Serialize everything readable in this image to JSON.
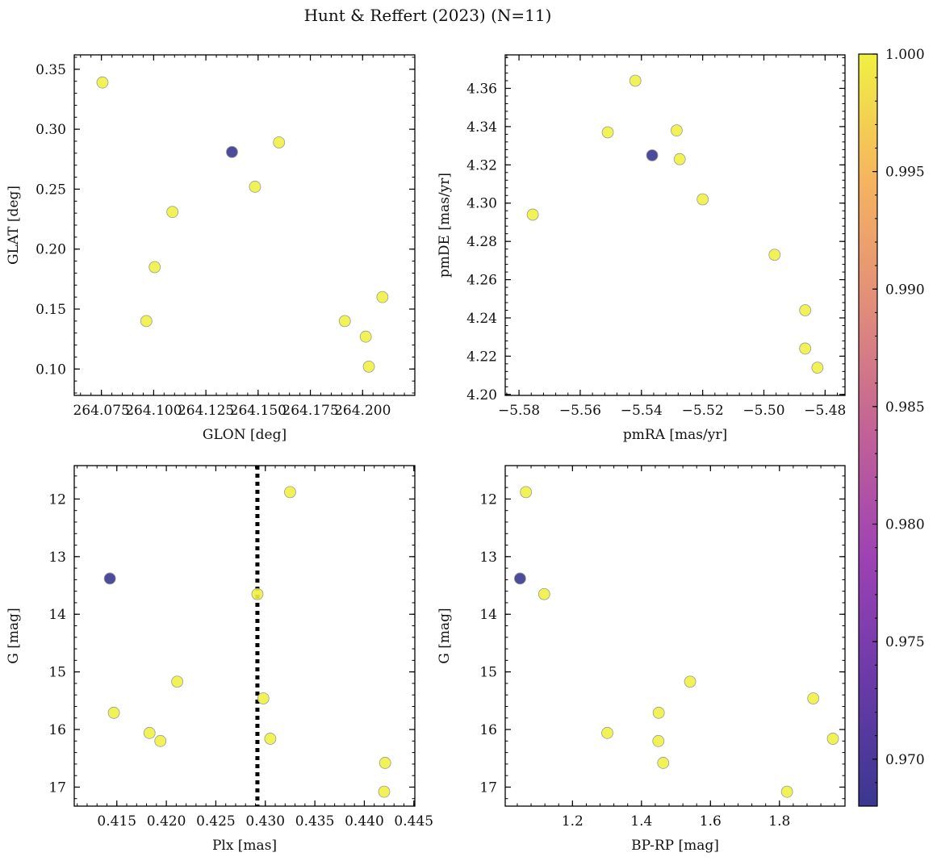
{
  "figure": {
    "title": "Hunt & Reffert (2023) (N=11)"
  },
  "colors": {
    "low": "#3a3890",
    "high": "#f0f142",
    "edge": "#9a9a9a",
    "refline": "#000000"
  },
  "chart_data": [
    {
      "type": "scatter",
      "id": "panel-glon-glat",
      "xlabel": "GLON [deg]",
      "ylabel": "GLAT [deg]",
      "xlim": [
        264.062,
        264.225
      ],
      "ylim": [
        0.078,
        0.362
      ],
      "xticks": [
        264.075,
        264.1,
        264.125,
        264.15,
        264.175,
        264.2
      ],
      "xtick_labels": [
        "264.075",
        "264.100",
        "264.125",
        "264.150",
        "264.175",
        "264.200"
      ],
      "yticks": [
        0.1,
        0.15,
        0.2,
        0.25,
        0.3,
        0.35
      ],
      "ytick_labels": [
        "0.10",
        "0.15",
        "0.20",
        "0.25",
        "0.30",
        "0.35"
      ],
      "invert_y": false,
      "points": [
        {
          "x": 264.0755,
          "y": 0.339,
          "c": 1.0
        },
        {
          "x": 264.1375,
          "y": 0.281,
          "c": 0.968
        },
        {
          "x": 264.16,
          "y": 0.289,
          "c": 1.0
        },
        {
          "x": 264.1485,
          "y": 0.252,
          "c": 1.0
        },
        {
          "x": 264.109,
          "y": 0.231,
          "c": 1.0
        },
        {
          "x": 264.1005,
          "y": 0.185,
          "c": 1.0
        },
        {
          "x": 264.0965,
          "y": 0.14,
          "c": 1.0
        },
        {
          "x": 264.1915,
          "y": 0.14,
          "c": 1.0
        },
        {
          "x": 264.2015,
          "y": 0.127,
          "c": 1.0
        },
        {
          "x": 264.2095,
          "y": 0.16,
          "c": 1.0
        },
        {
          "x": 264.203,
          "y": 0.102,
          "c": 1.0
        }
      ]
    },
    {
      "type": "scatter",
      "id": "panel-pm",
      "xlabel": "pmRA [mas/yr]",
      "ylabel": "pmDE [mas/yr]",
      "xlim": [
        -5.5845,
        -5.4735
      ],
      "ylim": [
        4.1995,
        4.3775
      ],
      "xticks": [
        -5.58,
        -5.56,
        -5.54,
        -5.52,
        -5.5,
        -5.48
      ],
      "xtick_labels": [
        "−5.58",
        "−5.56",
        "−5.54",
        "−5.52",
        "−5.50",
        "−5.48"
      ],
      "yticks": [
        4.2,
        4.22,
        4.24,
        4.26,
        4.28,
        4.3,
        4.32,
        4.34,
        4.36
      ],
      "ytick_labels": [
        "4.20",
        "4.22",
        "4.24",
        "4.26",
        "4.28",
        "4.30",
        "4.32",
        "4.34",
        "4.36"
      ],
      "invert_y": false,
      "points": [
        {
          "x": -5.5755,
          "y": 4.294,
          "c": 1.0
        },
        {
          "x": -5.551,
          "y": 4.337,
          "c": 1.0
        },
        {
          "x": -5.542,
          "y": 4.364,
          "c": 1.0
        },
        {
          "x": -5.5365,
          "y": 4.325,
          "c": 0.968
        },
        {
          "x": -5.5285,
          "y": 4.338,
          "c": 1.0
        },
        {
          "x": -5.5275,
          "y": 4.323,
          "c": 1.0
        },
        {
          "x": -5.52,
          "y": 4.302,
          "c": 1.0
        },
        {
          "x": -5.4965,
          "y": 4.273,
          "c": 1.0
        },
        {
          "x": -5.4865,
          "y": 4.244,
          "c": 1.0
        },
        {
          "x": -5.4865,
          "y": 4.224,
          "c": 1.0
        },
        {
          "x": -5.4825,
          "y": 4.214,
          "c": 1.0
        }
      ]
    },
    {
      "type": "scatter",
      "id": "panel-plx-g",
      "xlabel": "Plx [mas]",
      "ylabel": "G [mag]",
      "xlim": [
        0.4107,
        0.4451
      ],
      "ylim": [
        17.33,
        11.42
      ],
      "xticks": [
        0.415,
        0.42,
        0.425,
        0.43,
        0.435,
        0.44,
        0.445
      ],
      "xtick_labels": [
        "0.415",
        "0.420",
        "0.425",
        "0.430",
        "0.435",
        "0.440",
        "0.445"
      ],
      "yticks": [
        12,
        13,
        14,
        15,
        16,
        17
      ],
      "ytick_labels": [
        "12",
        "13",
        "14",
        "15",
        "16",
        "17"
      ],
      "invert_y": true,
      "vline": 0.4292,
      "points": [
        {
          "x": 0.4325,
          "y": 11.88,
          "c": 1.0
        },
        {
          "x": 0.4143,
          "y": 13.38,
          "c": 0.968
        },
        {
          "x": 0.4292,
          "y": 13.65,
          "c": 1.0
        },
        {
          "x": 0.4211,
          "y": 15.17,
          "c": 1.0
        },
        {
          "x": 0.4147,
          "y": 15.71,
          "c": 1.0
        },
        {
          "x": 0.4298,
          "y": 15.46,
          "c": 1.0
        },
        {
          "x": 0.4183,
          "y": 16.06,
          "c": 1.0
        },
        {
          "x": 0.4194,
          "y": 16.2,
          "c": 1.0
        },
        {
          "x": 0.4305,
          "y": 16.16,
          "c": 1.0
        },
        {
          "x": 0.4421,
          "y": 16.58,
          "c": 1.0
        },
        {
          "x": 0.442,
          "y": 17.08,
          "c": 1.0
        }
      ]
    },
    {
      "type": "scatter",
      "id": "panel-cmd",
      "xlabel": "BP-RP [mag]",
      "ylabel": "G [mag]",
      "xlim": [
        1.005,
        1.99
      ],
      "ylim": [
        17.33,
        11.42
      ],
      "xticks": [
        1.2,
        1.4,
        1.6,
        1.8
      ],
      "xtick_labels": [
        "1.2",
        "1.4",
        "1.6",
        "1.8"
      ],
      "yticks": [
        12,
        13,
        14,
        15,
        16,
        17
      ],
      "ytick_labels": [
        "12",
        "13",
        "14",
        "15",
        "16",
        "17"
      ],
      "invert_y": true,
      "points": [
        {
          "x": 1.065,
          "y": 11.88,
          "c": 1.0
        },
        {
          "x": 1.048,
          "y": 13.38,
          "c": 0.968
        },
        {
          "x": 1.118,
          "y": 13.65,
          "c": 1.0
        },
        {
          "x": 1.541,
          "y": 15.17,
          "c": 1.0
        },
        {
          "x": 1.45,
          "y": 15.71,
          "c": 1.0
        },
        {
          "x": 1.301,
          "y": 16.06,
          "c": 1.0
        },
        {
          "x": 1.449,
          "y": 16.2,
          "c": 1.0
        },
        {
          "x": 1.463,
          "y": 16.58,
          "c": 1.0
        },
        {
          "x": 1.898,
          "y": 15.46,
          "c": 1.0
        },
        {
          "x": 1.955,
          "y": 16.16,
          "c": 1.0
        },
        {
          "x": 1.822,
          "y": 17.08,
          "c": 1.0
        }
      ]
    }
  ],
  "colorbar": {
    "min": 0.968,
    "max": 1.0,
    "ticks": [
      0.97,
      0.975,
      0.98,
      0.985,
      0.99,
      0.995,
      1.0
    ],
    "tick_labels": [
      "0.970",
      "0.975",
      "0.980",
      "0.985",
      "0.990",
      "0.995",
      "1.000"
    ],
    "colormap": "plasma-like",
    "stops": [
      "#3a3890",
      "#6a3aa8",
      "#9e42b4",
      "#c36296",
      "#e28d7a",
      "#f6b45f",
      "#f0f142"
    ]
  }
}
